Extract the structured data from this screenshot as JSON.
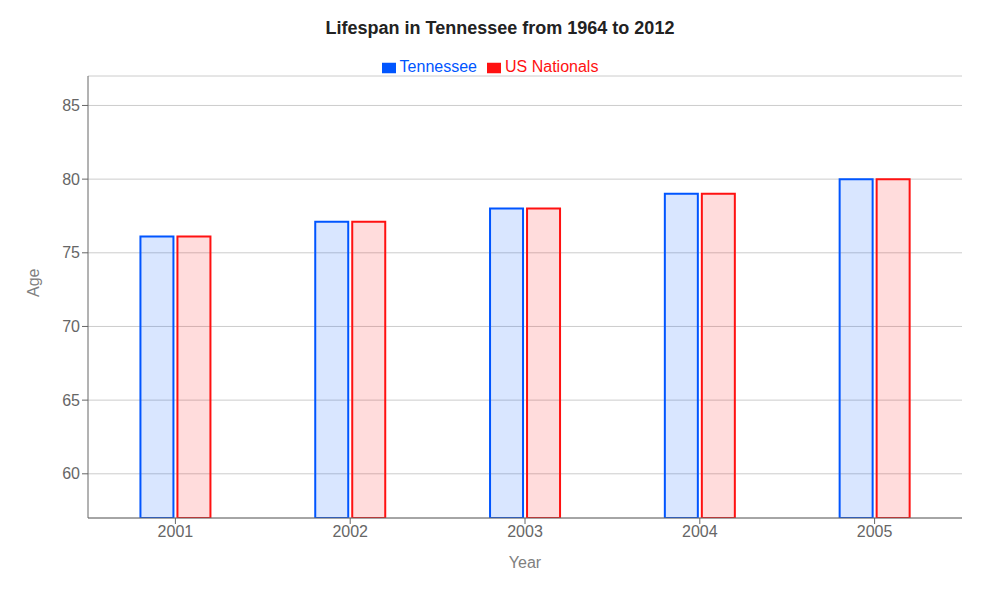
{
  "chart_data": {
    "type": "bar",
    "title": "Lifespan in Tennessee from 1964 to 2012",
    "x_label": "Year",
    "y_label": "Age",
    "categories": [
      "2001",
      "2002",
      "2003",
      "2004",
      "2005"
    ],
    "series": [
      {
        "name": "Tennessee",
        "color": "#0055ff",
        "values": [
          76.1,
          77.1,
          78.0,
          79.0,
          80.0
        ]
      },
      {
        "name": "US Nationals",
        "color": "#ff1111",
        "values": [
          76.1,
          77.1,
          78.0,
          79.0,
          80.0
        ]
      }
    ],
    "ylim": [
      57,
      87
    ],
    "yticks": [
      60,
      65,
      70,
      75,
      80,
      85
    ],
    "grid": true,
    "legend": "top"
  }
}
